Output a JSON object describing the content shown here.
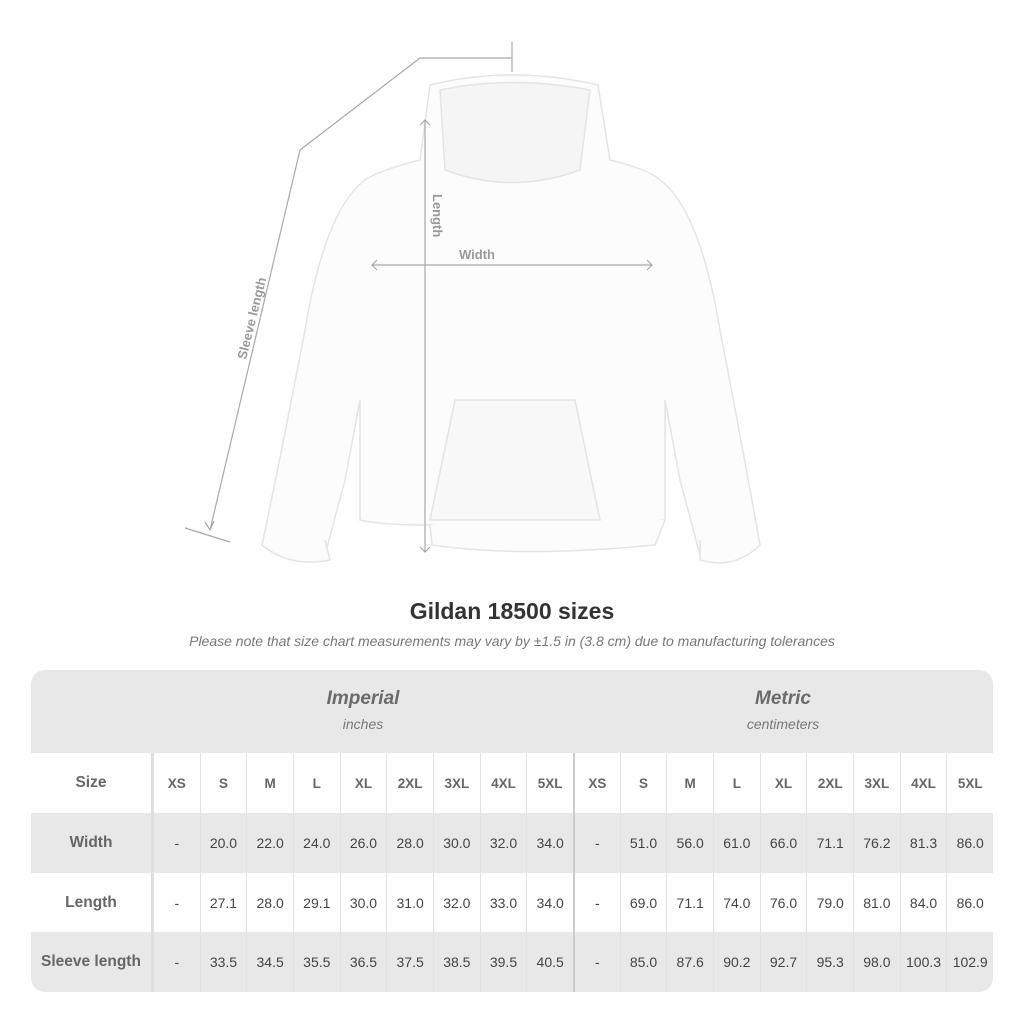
{
  "diagram": {
    "labels": {
      "sleeve": "Sleeve length",
      "length": "Length",
      "width": "Width"
    }
  },
  "title": "Gildan 18500 sizes",
  "note": "Please note that size chart measurements may vary by ±1.5 in (3.8 cm) due to manufacturing tolerances",
  "table": {
    "imperial": {
      "title": "Imperial",
      "unit": "inches"
    },
    "metric": {
      "title": "Metric",
      "unit": "centimeters"
    },
    "size_label": "Size",
    "sizes": [
      "XS",
      "S",
      "M",
      "L",
      "XL",
      "2XL",
      "3XL",
      "4XL",
      "5XL"
    ],
    "rows": [
      {
        "label": "Width",
        "imperial": [
          "-",
          "20.0",
          "22.0",
          "24.0",
          "26.0",
          "28.0",
          "30.0",
          "32.0",
          "34.0"
        ],
        "metric": [
          "-",
          "51.0",
          "56.0",
          "61.0",
          "66.0",
          "71.1",
          "76.2",
          "81.3",
          "86.0"
        ]
      },
      {
        "label": "Length",
        "imperial": [
          "-",
          "27.1",
          "28.0",
          "29.1",
          "30.0",
          "31.0",
          "32.0",
          "33.0",
          "34.0"
        ],
        "metric": [
          "-",
          "69.0",
          "71.1",
          "74.0",
          "76.0",
          "79.0",
          "81.0",
          "84.0",
          "86.0"
        ]
      },
      {
        "label": "Sleeve length",
        "imperial": [
          "-",
          "33.5",
          "34.5",
          "35.5",
          "36.5",
          "37.5",
          "38.5",
          "39.5",
          "40.5"
        ],
        "metric": [
          "-",
          "85.0",
          "87.6",
          "90.2",
          "92.7",
          "95.3",
          "98.0",
          "100.3",
          "102.9"
        ]
      }
    ]
  },
  "colors": {
    "table_bg": "#e8e8e8",
    "title": "#333333"
  }
}
